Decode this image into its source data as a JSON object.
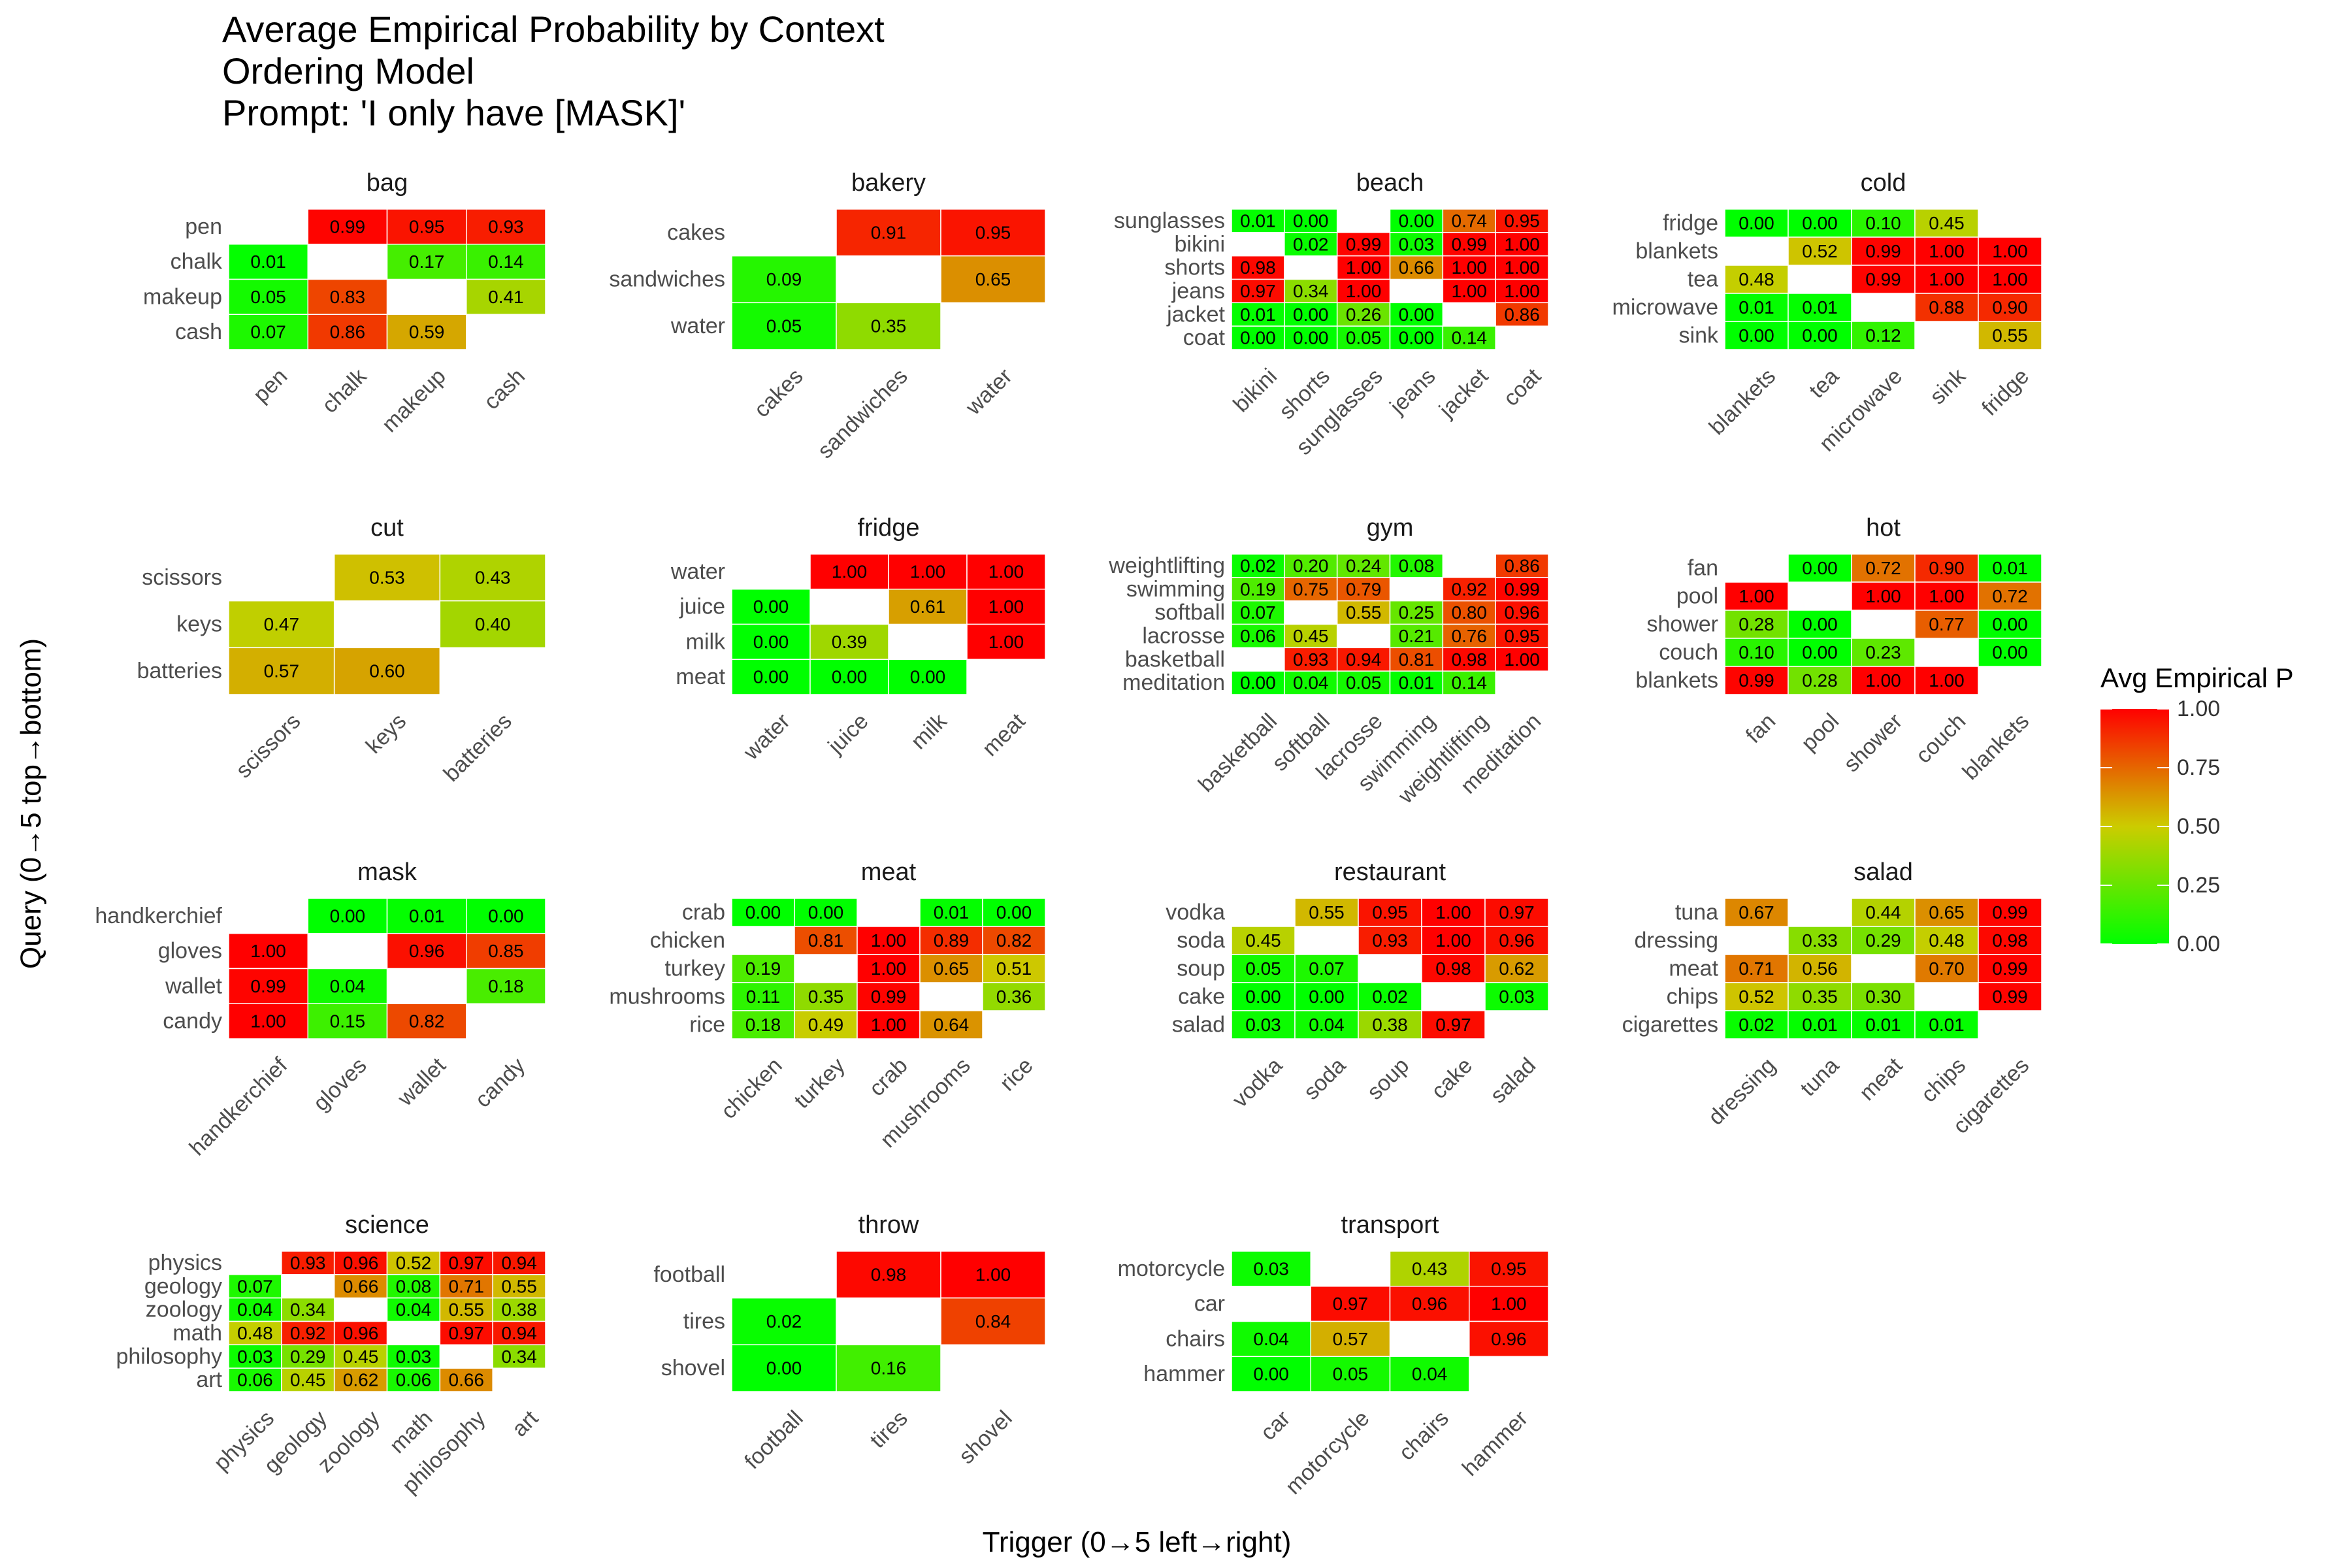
{
  "chart_data": {
    "type": "heatmap",
    "title": [
      "Average Empirical Probability by Context",
      "Ordering Model",
      "Prompt: 'I only have [MASK]'"
    ],
    "xlabel": "Trigger (0→5 left→right)",
    "ylabel": "Query    (0→5 top→bottom)",
    "legend": {
      "title": "Avg Empirical P",
      "ticks": [
        "1.00",
        "0.75",
        "0.50",
        "0.25",
        "0.00"
      ],
      "range": [
        0,
        1
      ],
      "colors": {
        "low": "#00ff00",
        "mid": "#cccc00",
        "high": "#ff0000"
      },
      "placement": "right"
    },
    "panels": [
      {
        "name": "bag",
        "x": [
          "pen",
          "chalk",
          "makeup",
          "cash"
        ],
        "y": [
          "pen",
          "chalk",
          "makeup",
          "cash"
        ],
        "values": [
          [
            null,
            0.99,
            0.95,
            0.93
          ],
          [
            0.01,
            null,
            0.17,
            0.14
          ],
          [
            0.05,
            0.83,
            null,
            0.41
          ],
          [
            0.07,
            0.86,
            0.59,
            null
          ]
        ]
      },
      {
        "name": "bakery",
        "x": [
          "cakes",
          "sandwiches",
          "water"
        ],
        "y": [
          "cakes",
          "sandwiches",
          "water"
        ],
        "values": [
          [
            null,
            0.91,
            0.95
          ],
          [
            0.09,
            null,
            0.65
          ],
          [
            0.05,
            0.35,
            null
          ]
        ]
      },
      {
        "name": "beach",
        "x": [
          "bikini",
          "shorts",
          "sunglasses",
          "jeans",
          "jacket",
          "coat"
        ],
        "y": [
          "sunglasses",
          "bikini",
          "shorts",
          "jeans",
          "jacket",
          "coat"
        ],
        "values": [
          [
            0.01,
            0.0,
            null,
            0.0,
            0.74,
            0.95
          ],
          [
            null,
            0.02,
            0.99,
            0.03,
            0.99,
            1.0
          ],
          [
            0.98,
            null,
            1.0,
            0.66,
            1.0,
            1.0
          ],
          [
            0.97,
            0.34,
            1.0,
            null,
            1.0,
            1.0
          ],
          [
            0.01,
            0.0,
            0.26,
            0.0,
            null,
            0.86
          ],
          [
            0.0,
            0.0,
            0.05,
            0.0,
            0.14,
            null
          ]
        ]
      },
      {
        "name": "cold",
        "x": [
          "blankets",
          "tea",
          "microwave",
          "sink",
          "fridge"
        ],
        "y": [
          "fridge",
          "blankets",
          "tea",
          "microwave",
          "sink"
        ],
        "values": [
          [
            0.0,
            0.0,
            0.1,
            0.45,
            null
          ],
          [
            null,
            0.52,
            0.99,
            1.0,
            1.0
          ],
          [
            0.48,
            null,
            0.99,
            1.0,
            1.0
          ],
          [
            0.01,
            0.01,
            null,
            0.88,
            0.9
          ],
          [
            0.0,
            0.0,
            0.12,
            null,
            0.55
          ]
        ]
      },
      {
        "name": "cut",
        "x": [
          "scissors",
          "keys",
          "batteries"
        ],
        "y": [
          "scissors",
          "keys",
          "batteries"
        ],
        "values": [
          [
            null,
            0.53,
            0.43
          ],
          [
            0.47,
            null,
            0.4
          ],
          [
            0.57,
            0.6,
            null
          ]
        ]
      },
      {
        "name": "fridge",
        "x": [
          "water",
          "juice",
          "milk",
          "meat"
        ],
        "y": [
          "water",
          "juice",
          "milk",
          "meat"
        ],
        "values": [
          [
            null,
            1.0,
            1.0,
            1.0
          ],
          [
            0.0,
            null,
            0.61,
            1.0
          ],
          [
            0.0,
            0.39,
            null,
            1.0
          ],
          [
            0.0,
            0.0,
            0.0,
            null
          ]
        ]
      },
      {
        "name": "gym",
        "x": [
          "basketball",
          "softball",
          "lacrosse",
          "swimming",
          "weightlifting",
          "meditation"
        ],
        "y": [
          "weightlifting",
          "swimming",
          "softball",
          "lacrosse",
          "basketball",
          "meditation"
        ],
        "values": [
          [
            0.02,
            0.2,
            0.24,
            0.08,
            null,
            0.86
          ],
          [
            0.19,
            0.75,
            0.79,
            null,
            0.92,
            0.99
          ],
          [
            0.07,
            null,
            0.55,
            0.25,
            0.8,
            0.96
          ],
          [
            0.06,
            0.45,
            null,
            0.21,
            0.76,
            0.95
          ],
          [
            null,
            0.93,
            0.94,
            0.81,
            0.98,
            1.0
          ],
          [
            0.0,
            0.04,
            0.05,
            0.01,
            0.14,
            null
          ]
        ]
      },
      {
        "name": "hot",
        "x": [
          "fan",
          "pool",
          "shower",
          "couch",
          "blankets"
        ],
        "y": [
          "fan",
          "pool",
          "shower",
          "couch",
          "blankets"
        ],
        "values": [
          [
            null,
            0.0,
            0.72,
            0.9,
            0.01
          ],
          [
            1.0,
            null,
            1.0,
            1.0,
            0.72
          ],
          [
            0.28,
            0.0,
            null,
            0.77,
            0.0
          ],
          [
            0.1,
            0.0,
            0.23,
            null,
            0.0
          ],
          [
            0.99,
            0.28,
            1.0,
            1.0,
            null
          ]
        ]
      },
      {
        "name": "mask",
        "x": [
          "handkerchief",
          "gloves",
          "wallet",
          "candy"
        ],
        "y": [
          "handkerchief",
          "gloves",
          "wallet",
          "candy"
        ],
        "values": [
          [
            null,
            0.0,
            0.01,
            0.0
          ],
          [
            1.0,
            null,
            0.96,
            0.85
          ],
          [
            0.99,
            0.04,
            null,
            0.18
          ],
          [
            1.0,
            0.15,
            0.82,
            null
          ]
        ]
      },
      {
        "name": "meat",
        "x": [
          "chicken",
          "turkey",
          "crab",
          "mushrooms",
          "rice"
        ],
        "y": [
          "crab",
          "chicken",
          "turkey",
          "mushrooms",
          "rice"
        ],
        "values": [
          [
            0.0,
            0.0,
            null,
            0.01,
            0.0
          ],
          [
            null,
            0.81,
            1.0,
            0.89,
            0.82
          ],
          [
            0.19,
            null,
            1.0,
            0.65,
            0.51
          ],
          [
            0.11,
            0.35,
            0.99,
            null,
            0.36
          ],
          [
            0.18,
            0.49,
            1.0,
            0.64,
            null
          ]
        ]
      },
      {
        "name": "restaurant",
        "x": [
          "vodka",
          "soda",
          "soup",
          "cake",
          "salad"
        ],
        "y": [
          "vodka",
          "soda",
          "soup",
          "cake",
          "salad"
        ],
        "values": [
          [
            null,
            0.55,
            0.95,
            1.0,
            0.97
          ],
          [
            0.45,
            null,
            0.93,
            1.0,
            0.96
          ],
          [
            0.05,
            0.07,
            null,
            0.98,
            0.62
          ],
          [
            0.0,
            0.0,
            0.02,
            null,
            0.03
          ],
          [
            0.03,
            0.04,
            0.38,
            0.97,
            null
          ]
        ]
      },
      {
        "name": "salad",
        "x": [
          "dressing",
          "tuna",
          "meat",
          "chips",
          "cigarettes"
        ],
        "y": [
          "tuna",
          "dressing",
          "meat",
          "chips",
          "cigarettes"
        ],
        "values": [
          [
            0.67,
            null,
            0.44,
            0.65,
            0.99
          ],
          [
            null,
            0.33,
            0.29,
            0.48,
            0.98
          ],
          [
            0.71,
            0.56,
            null,
            0.7,
            0.99
          ],
          [
            0.52,
            0.35,
            0.3,
            null,
            0.99
          ],
          [
            0.02,
            0.01,
            0.01,
            0.01,
            null
          ]
        ]
      },
      {
        "name": "science",
        "x": [
          "physics",
          "geology",
          "zoology",
          "math",
          "philosophy",
          "art"
        ],
        "y": [
          "physics",
          "geology",
          "zoology",
          "math",
          "philosophy",
          "art"
        ],
        "values": [
          [
            null,
            0.93,
            0.96,
            0.52,
            0.97,
            0.94
          ],
          [
            0.07,
            null,
            0.66,
            0.08,
            0.71,
            0.55
          ],
          [
            0.04,
            0.34,
            null,
            0.04,
            0.55,
            0.38
          ],
          [
            0.48,
            0.92,
            0.96,
            null,
            0.97,
            0.94
          ],
          [
            0.03,
            0.29,
            0.45,
            0.03,
            null,
            0.34
          ],
          [
            0.06,
            0.45,
            0.62,
            0.06,
            0.66,
            null
          ]
        ]
      },
      {
        "name": "throw",
        "x": [
          "football",
          "tires",
          "shovel"
        ],
        "y": [
          "football",
          "tires",
          "shovel"
        ],
        "values": [
          [
            null,
            0.98,
            1.0
          ],
          [
            0.02,
            null,
            0.84
          ],
          [
            0.0,
            0.16,
            null
          ]
        ]
      },
      {
        "name": "transport",
        "x": [
          "car",
          "motorcycle",
          "chairs",
          "hammer"
        ],
        "y": [
          "motorcycle",
          "car",
          "chairs",
          "hammer"
        ],
        "values": [
          [
            0.03,
            null,
            0.43,
            0.95
          ],
          [
            null,
            0.97,
            0.96,
            1.0
          ],
          [
            0.04,
            0.57,
            null,
            0.96
          ],
          [
            0.0,
            0.05,
            0.04,
            null
          ]
        ]
      }
    ]
  }
}
